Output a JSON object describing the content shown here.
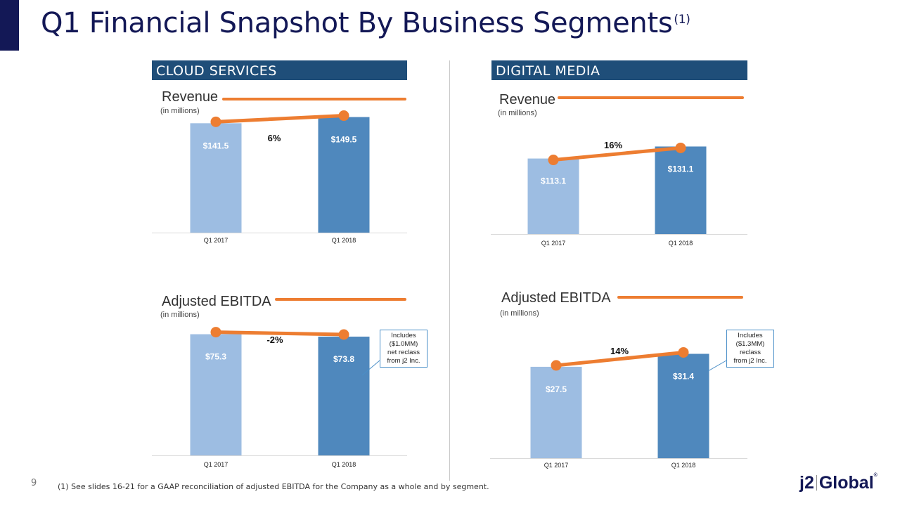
{
  "title": "Q1 Financial Snapshot By Business Segments",
  "title_sup": "(1)",
  "segments": {
    "cloud": "CLOUD SERVICES",
    "digital": "DIGITAL MEDIA"
  },
  "labels": {
    "revenue": "Revenue",
    "ebitda": "Adjusted EBITDA",
    "units": "(in millions)"
  },
  "callouts": {
    "cloud": [
      "Includes",
      "($1.0MM)",
      "net reclass",
      "from j2 Inc."
    ],
    "digital": [
      "Includes",
      "($1.3MM)",
      "reclass",
      "from j2 Inc."
    ]
  },
  "footnote": "(1)  See slides 16-21 for a GAAP reconciliation of adjusted EBITDA for the Company as a whole and by segment.",
  "page_number": "9",
  "logo": {
    "part1": "j2",
    "part2": "Global",
    "mark": "®"
  },
  "colors": {
    "bar_prior": "#9dbde2",
    "bar_current": "#4f88bd",
    "growth_line": "#ed7d31",
    "header_bg": "#1f4e79",
    "title": "#131856"
  },
  "chart_data": [
    {
      "type": "bar",
      "title": "Revenue",
      "subtitle": "(in millions)",
      "categories": [
        "Q1 2017",
        "Q1 2018"
      ],
      "values": [
        141.5,
        149.5
      ],
      "value_labels": [
        "$141.5",
        "$149.5"
      ],
      "growth_label": "6%"
    },
    {
      "type": "bar",
      "title": "Revenue",
      "subtitle": "(in millions)",
      "categories": [
        "Q1 2017",
        "Q1 2018"
      ],
      "values": [
        113.1,
        131.1
      ],
      "value_labels": [
        "$113.1",
        "$131.1"
      ],
      "growth_label": "16%"
    },
    {
      "type": "bar",
      "title": "Adjusted EBITDA",
      "subtitle": "(in millions)",
      "categories": [
        "Q1 2017",
        "Q1 2018"
      ],
      "values": [
        75.3,
        73.8
      ],
      "value_labels": [
        "$75.3",
        "$73.8"
      ],
      "growth_label": "-2%"
    },
    {
      "type": "bar",
      "title": "Adjusted EBITDA",
      "subtitle": "(in millions)",
      "categories": [
        "Q1 2017",
        "Q1 2018"
      ],
      "values": [
        27.5,
        31.4
      ],
      "value_labels": [
        "$27.5",
        "$31.4"
      ],
      "growth_label": "14%"
    }
  ]
}
